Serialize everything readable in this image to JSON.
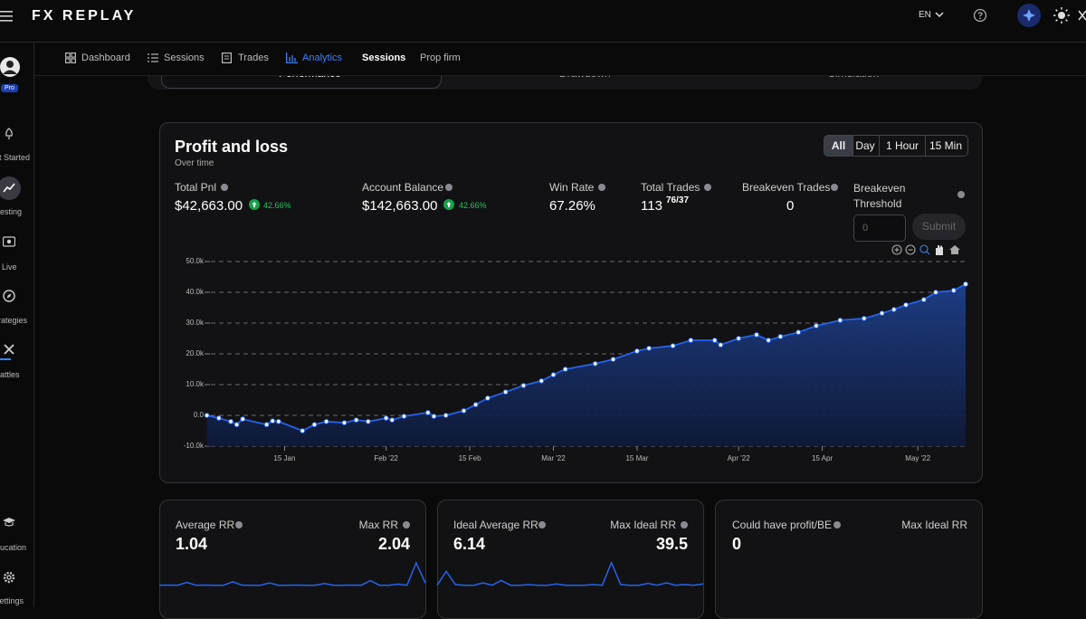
{
  "header": {
    "logo": "FX REPLAY",
    "language": "EN"
  },
  "sidebar": {
    "badge": "Pro",
    "items": [
      "t Started",
      "esting",
      "Live",
      "rategies",
      "attles",
      "ucation",
      "ettings"
    ]
  },
  "nav": [
    "Dashboard",
    "Sessions",
    "Trades",
    "Analytics",
    "Sessions",
    "Prop firm"
  ],
  "tabs": [
    "Performance",
    "Drawdown",
    "Simulation"
  ],
  "card": {
    "timeframes": [
      "All",
      "Day",
      "1 Hour",
      "15 Min"
    ],
    "stats": [
      {
        "label": "Total Pnl",
        "value": "$42,663.00",
        "change": "42.66%"
      },
      {
        "label": "Account Balance",
        "value": "$142,663.00",
        "change": "42.66%"
      },
      {
        "label": "Win Rate",
        "value": "67.26%"
      },
      {
        "label": "Total Trades",
        "value": "113",
        "detail": "76/37"
      },
      {
        "label": "Breakeven Trades",
        "value": "0"
      }
    ],
    "threshold": {
      "label": "Breakeven Threshold",
      "placeholder": "0",
      "button": "Submit"
    }
  },
  "chart_data": {
    "type": "area",
    "title": "Profit and loss",
    "subtitle": "Over time",
    "x": [
      "2022-01-02",
      "2022-01-04",
      "2022-01-06",
      "2022-01-07",
      "2022-01-08",
      "2022-01-12",
      "2022-01-13",
      "2022-01-14",
      "2022-01-18",
      "2022-01-20",
      "2022-01-22",
      "2022-01-25",
      "2022-01-27",
      "2022-01-29",
      "2022-02-01",
      "2022-02-02",
      "2022-02-04",
      "2022-02-08",
      "2022-02-09",
      "2022-02-11",
      "2022-02-14",
      "2022-02-16",
      "2022-02-18",
      "2022-02-21",
      "2022-02-24",
      "2022-02-27",
      "2022-03-01",
      "2022-03-03",
      "2022-03-08",
      "2022-03-11",
      "2022-03-15",
      "2022-03-17",
      "2022-03-21",
      "2022-03-24",
      "2022-03-28",
      "2022-03-29",
      "2022-04-01",
      "2022-04-04",
      "2022-04-06",
      "2022-04-08",
      "2022-04-11",
      "2022-04-14",
      "2022-04-18",
      "2022-04-22",
      "2022-04-25",
      "2022-04-27",
      "2022-04-29",
      "2022-05-02",
      "2022-05-04",
      "2022-05-07",
      "2022-05-09"
    ],
    "values": [
      0,
      -900,
      -2000,
      -3000,
      -1200,
      -3000,
      -1800,
      -2000,
      -5000,
      -3000,
      -2000,
      -2400,
      -1500,
      -2000,
      -900,
      -1500,
      -300,
      900,
      -300,
      0,
      1500,
      3500,
      5600,
      7600,
      9700,
      11200,
      13200,
      15000,
      16800,
      18200,
      20900,
      21800,
      22600,
      24400,
      24400,
      22900,
      25000,
      26200,
      24400,
      25600,
      27000,
      29100,
      30900,
      31500,
      33200,
      34400,
      35900,
      37600,
      40000,
      40600,
      42663
    ],
    "color": "#2563eb",
    "xlim": [
      "2022-01-01",
      "2022-05-09"
    ],
    "xticks": [
      {
        "value": "2022-01-15",
        "label": "15 Jan"
      },
      {
        "value": "2022-02-01",
        "label": "Feb '22"
      },
      {
        "value": "2022-02-15",
        "label": "15 Feb"
      },
      {
        "value": "2022-03-01",
        "label": "Mar '22"
      },
      {
        "value": "2022-03-15",
        "label": "15 Mar"
      },
      {
        "value": "2022-04-01",
        "label": "Apr '22"
      },
      {
        "value": "2022-04-15",
        "label": "15 Apr"
      },
      {
        "value": "2022-05-01",
        "label": "May '22"
      }
    ],
    "ylim": [
      -10000,
      50000
    ],
    "yticks": [
      {
        "value": -10000,
        "label": "-10.0k"
      },
      {
        "value": 0,
        "label": "0.0"
      },
      {
        "value": 10000,
        "label": "10.0k"
      },
      {
        "value": 20000,
        "label": "20.0k"
      },
      {
        "value": 30000,
        "label": "30.0k"
      },
      {
        "value": 40000,
        "label": "40.0k"
      },
      {
        "value": 50000,
        "label": "50.0k"
      }
    ],
    "grid": true
  },
  "rr_cards": [
    {
      "left_label": "Average RR",
      "left_value": "1.04",
      "right_label": "Max RR",
      "right_value": "2.04",
      "ylim": [
        0,
        2.2
      ],
      "sparkline": [
        0.1,
        0.12,
        0.1,
        0.35,
        0.1,
        0.12,
        0.1,
        0.1,
        0.4,
        0.12,
        0.1,
        0.1,
        0.3,
        0.1,
        0.1,
        0.12,
        0.1,
        0.1,
        0.25,
        0.1,
        0.1,
        0.12,
        0.1,
        0.5,
        0.1,
        0.1,
        0.2,
        0.1,
        2.04,
        0.3
      ]
    },
    {
      "left_label": "Ideal Average RR",
      "left_value": "6.14",
      "right_label": "Max Ideal RR",
      "right_value": "39.5",
      "ylim": [
        0,
        42
      ],
      "sparkline": [
        2,
        25,
        3,
        2,
        2,
        6,
        2,
        10,
        2,
        2,
        3,
        2,
        2,
        4,
        2,
        2,
        2,
        3,
        2,
        39.5,
        3,
        2,
        2,
        5,
        2,
        6,
        2,
        3,
        2,
        4
      ]
    },
    {
      "left_label": "Could have profit/BE",
      "left_value": "0",
      "right_label": "Max Ideal RR"
    }
  ]
}
